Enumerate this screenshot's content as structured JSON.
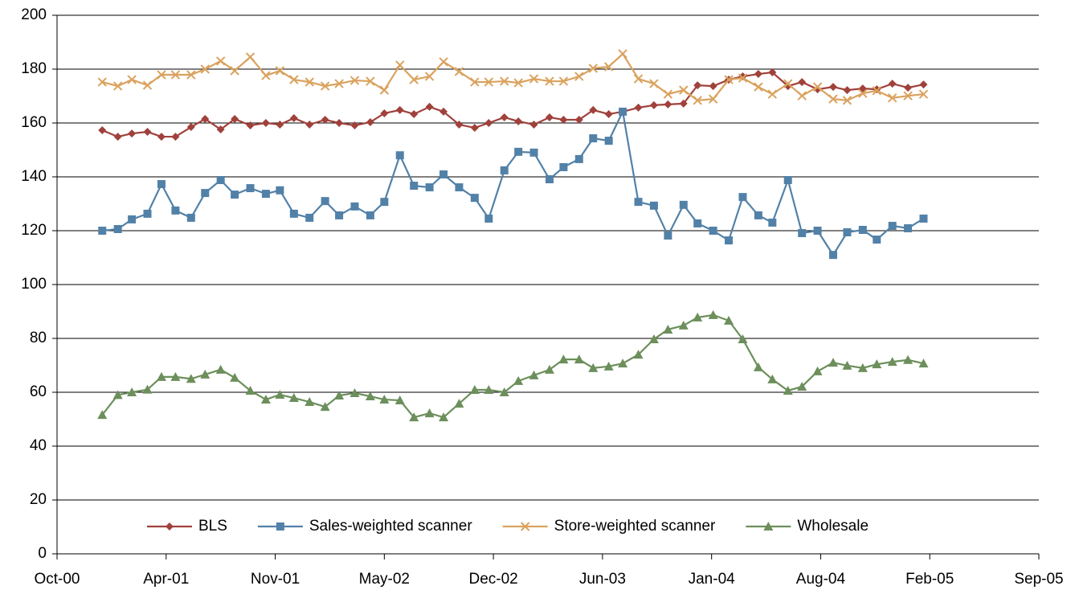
{
  "chart_data": {
    "type": "line",
    "x": [
      2.9,
      3.9,
      4.8,
      5.8,
      6.7,
      7.6,
      8.6,
      9.5,
      10.5,
      11.4,
      12.4,
      13.4,
      14.3,
      15.2,
      16.2,
      17.2,
      18.1,
      19.1,
      20.1,
      21.0,
      22.0,
      22.9,
      23.9,
      24.8,
      25.8,
      26.8,
      27.7,
      28.7,
      29.6,
      30.6,
      31.6,
      32.5,
      33.5,
      34.4,
      35.4,
      36.3,
      37.3,
      38.3,
      39.2,
      40.2,
      41.1,
      42.1,
      43.1,
      44.0,
      45.0,
      45.9,
      46.9,
      47.8,
      48.8,
      49.8,
      50.7,
      51.7,
      52.6,
      53.6,
      54.6,
      55.6
    ],
    "series": [
      {
        "name": "BLS",
        "color": "#a0413b",
        "marker": "diamond",
        "values": [
          157.3,
          154.9,
          156.1,
          156.7,
          154.9,
          154.9,
          158.5,
          161.5,
          157.6,
          161.5,
          159.1,
          160,
          159.4,
          161.8,
          159.4,
          161.2,
          160,
          159.1,
          160.3,
          163.6,
          164.8,
          163.3,
          166,
          164.2,
          159.4,
          158.2,
          160,
          162.1,
          160.6,
          159.4,
          162.1,
          161.2,
          161.2,
          164.8,
          163.3,
          164.2,
          165.7,
          166.6,
          166.9,
          167.2,
          174,
          173.7,
          176.1,
          177.3,
          178.2,
          178.8,
          173.7,
          175.2,
          172.5,
          173.4,
          172.2,
          172.8,
          172.5,
          174.6,
          173.1,
          174.3
        ]
      },
      {
        "name": "Sales-weighted scanner",
        "color": "#5281a8",
        "marker": "square",
        "values": [
          120,
          120.6,
          124.2,
          126.3,
          137.3,
          127.5,
          124.8,
          134,
          138.8,
          133.4,
          135.8,
          133.7,
          135,
          126.3,
          124.8,
          131,
          125.7,
          129,
          125.7,
          130.7,
          148,
          136.7,
          136.1,
          140.9,
          136.1,
          132.2,
          124.5,
          142.4,
          149.3,
          149,
          139.1,
          143.6,
          146.6,
          154.3,
          153.4,
          164.2,
          130.7,
          129.3,
          118.2,
          129.6,
          122.7,
          120,
          116.4,
          132.5,
          125.7,
          123,
          138.8,
          119.1,
          120,
          111,
          119.4,
          120.3,
          116.7,
          121.8,
          120.9,
          124.5
        ]
      },
      {
        "name": "Store-weighted scanner",
        "color": "#daa25e",
        "marker": "x",
        "values": [
          175.2,
          173.7,
          176.1,
          174,
          177.9,
          177.9,
          177.9,
          180,
          183,
          179.4,
          184.5,
          177.6,
          179.4,
          176.1,
          175.2,
          173.7,
          174.6,
          175.8,
          175.5,
          172.2,
          181.5,
          176.1,
          177.3,
          182.7,
          179.1,
          175.2,
          175.2,
          175.5,
          174.9,
          176.4,
          175.5,
          175.5,
          177.3,
          180.3,
          180.9,
          185.7,
          176.4,
          174.6,
          170.7,
          172.2,
          168.4,
          168.9,
          176.1,
          176.7,
          173.4,
          170.7,
          174.6,
          170.1,
          173.4,
          168.9,
          168.4,
          171,
          172,
          169.3,
          170.1,
          170.7
        ]
      },
      {
        "name": "Wholesale",
        "color": "#6c8f5b",
        "marker": "triangle",
        "values": [
          51.6,
          59,
          60,
          61,
          65.7,
          65.7,
          65,
          66.6,
          68.4,
          65.4,
          60.6,
          57.3,
          59.1,
          57.9,
          56.4,
          54.6,
          58.8,
          59.7,
          58.5,
          57.3,
          57,
          50.7,
          52.2,
          50.7,
          55.8,
          60.9,
          60.9,
          60,
          64.2,
          66.3,
          68.4,
          72.2,
          72.2,
          69,
          69.6,
          70.7,
          74,
          79.7,
          83.3,
          84.8,
          87.8,
          88.7,
          86.6,
          79.7,
          69.3,
          64.8,
          60.6,
          62.1,
          67.8,
          71,
          69.9,
          69,
          70.4,
          71.3,
          72,
          70.7
        ]
      }
    ],
    "xlim": [
      0,
      63
    ],
    "xticks": [
      {
        "value": 0,
        "label": "Oct-00"
      },
      {
        "value": 7,
        "label": "Apr-01"
      },
      {
        "value": 14,
        "label": "Nov-01"
      },
      {
        "value": 21,
        "label": "May-02"
      },
      {
        "value": 28,
        "label": "Dec-02"
      },
      {
        "value": 35,
        "label": "Jun-03"
      },
      {
        "value": 42,
        "label": "Jan-04"
      },
      {
        "value": 49,
        "label": "Aug-04"
      },
      {
        "value": 56,
        "label": "Feb-05"
      },
      {
        "value": 63,
        "label": "Sep-05"
      }
    ],
    "ylim": [
      0,
      200
    ],
    "yticks": [
      0,
      20,
      40,
      60,
      80,
      100,
      120,
      140,
      160,
      180,
      200
    ],
    "grid": true,
    "legend": "bottom"
  }
}
